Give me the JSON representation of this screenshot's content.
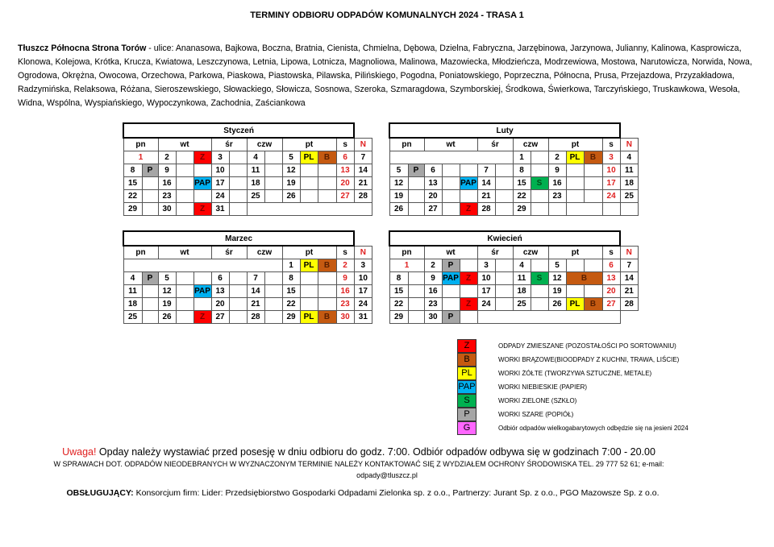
{
  "title": "TERMINY ODBIORU ODPADÓW KOMUNALNYCH 2024 - TRASA 1",
  "area": {
    "name": "Tłuszcz Północna Strona Torów",
    "streets": " - ulice: Ananasowa, Bajkowa, Boczna, Bratnia, Cienista, Chmielna, Dębowa, Dzielna, Fabryczna, Jarzębinowa, Jarzynowa, Julianny, Kalinowa, Kasprowicza, Klonowa, Kolejowa, Krótka, Krucza, Kwiatowa, Leszczynowa, Letnia, Lipowa, Lotnicza, Magnoliowa, Malinowa, Mazowiecka, Młodzieńcza, Modrzewiowa, Mostowa, Narutowicza, Norwida, Nowa, Ogrodowa, Okrężna, Owocowa, Orzechowa, Parkowa, Piaskowa, Piastowska, Pilawska, Pilińskiego, Pogodna, Poniatowskiego, Poprzeczna, Północna, Prusa, Przejazdowa, Przyzakładowa, Radzymińska, Relaksowa, Różana, Sieroszewskiego, Słowackiego, Słowicza, Sosnowa, Szeroka, Szmaragdowa, Szymborskiej, Środkowa, Świerkowa, Tarczyńskiego, Truskawkowa, Wesoła, Widna, Wspólna, Wyspiańskiego, Wypoczynkowa, Zachodnia, Zaściankowa"
  },
  "weekdays": [
    {
      "v": "pn",
      "span": 2
    },
    {
      "v": "wt",
      "span": 3
    },
    {
      "v": "śr",
      "span": 2
    },
    {
      "v": "czw",
      "span": 2
    },
    {
      "v": "pt",
      "span": 3
    },
    {
      "v": "s"
    },
    {
      "v": "N",
      "red": true
    }
  ],
  "months": [
    {
      "name": "Styczeń",
      "rows": [
        [
          {
            "v": "1",
            "red": true,
            "span": 2
          },
          "2",
          "",
          "Z",
          "3",
          "",
          "4",
          "",
          "5",
          "PL",
          "B",
          {
            "v": "6",
            "red": true
          },
          "7"
        ],
        [
          "8",
          "P",
          "9",
          "",
          "",
          "10",
          "",
          "11",
          "",
          "12",
          "",
          "",
          "13",
          "14"
        ],
        [
          "15",
          "",
          "16",
          "",
          "PAP",
          "17",
          "",
          "18",
          "",
          "19",
          "",
          "",
          "20",
          "21"
        ],
        [
          "22",
          "",
          "23",
          "",
          "",
          "24",
          "",
          "25",
          "",
          "26",
          "",
          "",
          "27",
          "28"
        ],
        [
          "29",
          "",
          "30",
          "",
          "Z",
          "31",
          "",
          {
            "v": "",
            "span": 7
          }
        ]
      ]
    },
    {
      "name": "Luty",
      "rows": [
        [
          {
            "v": "",
            "span": 7
          },
          "1",
          "",
          "2",
          "PL",
          "B",
          "3",
          "4"
        ],
        [
          "5",
          "P",
          "6",
          "",
          "",
          "7",
          "",
          "8",
          "",
          "9",
          "",
          "",
          "10",
          "11"
        ],
        [
          "12",
          "",
          "13",
          "",
          "PAP",
          "14",
          "",
          "15",
          "S",
          "16",
          "",
          "",
          "17",
          "18"
        ],
        [
          "19",
          "",
          "20",
          "",
          "",
          "21",
          "",
          "22",
          "",
          "23",
          "",
          "",
          "24",
          "25"
        ],
        [
          "26",
          "",
          "27",
          "",
          "Z",
          "28",
          "",
          "29",
          "",
          "",
          {
            "v": "",
            "span": 2
          },
          "",
          ""
        ]
      ]
    },
    {
      "name": "Marzec",
      "rows": [
        [
          {
            "v": "",
            "span": 9
          },
          "1",
          "PL",
          "B",
          "2",
          "3"
        ],
        [
          "4",
          "P",
          "5",
          "",
          "",
          "6",
          "",
          "7",
          "",
          "8",
          "",
          "",
          "9",
          "10"
        ],
        [
          "11",
          "",
          "12",
          "",
          "PAP",
          "13",
          "",
          "14",
          "",
          "15",
          "",
          "",
          "16",
          "17"
        ],
        [
          "18",
          "",
          "19",
          "",
          "",
          "20",
          "",
          "21",
          "",
          "22",
          "",
          "",
          "23",
          "24"
        ],
        [
          "25",
          "",
          "26",
          "",
          "Z",
          "27",
          "",
          "28",
          "",
          "29",
          "PL",
          "B",
          "30",
          "31"
        ]
      ]
    },
    {
      "name": "Kwiecień",
      "rows": [
        [
          {
            "v": "1",
            "red": true,
            "span": 2
          },
          "2",
          "P",
          "",
          "3",
          "",
          "4",
          "",
          "5",
          "",
          "",
          "6",
          "7"
        ],
        [
          "8",
          "",
          "9",
          "PAP",
          "Z",
          "10",
          "",
          "11",
          "S",
          "12",
          {
            "v": "B",
            "span": 2
          },
          "13",
          "14"
        ],
        [
          "15",
          "",
          "16",
          "",
          "",
          "17",
          "",
          "18",
          "",
          "19",
          "",
          "",
          "20",
          "21"
        ],
        [
          "22",
          "",
          "23",
          "",
          "Z",
          "24",
          "",
          "25",
          "",
          "26",
          "PL",
          "B",
          "27",
          "28"
        ],
        [
          "29",
          "",
          "30",
          "P",
          "",
          {
            "v": "",
            "span": 8
          }
        ]
      ]
    }
  ],
  "legend": [
    {
      "code": "Z",
      "color": "#ff0000",
      "text": "ODPADY ZMIESZANE (POZOSTAŁOŚCI PO SORTOWANIU)"
    },
    {
      "code": "B",
      "color": "#c55a11",
      "text": "WORKI BRĄZOWE(BIOODPADY Z KUCHNI, TRAWA, LIŚCIE)"
    },
    {
      "code": "PL",
      "color": "#ffff00",
      "text": "WORKI ŻÓŁTE (TWORZYWA SZTUCZNE, METALE)"
    },
    {
      "code": "PAP",
      "color": "#00b0f0",
      "text": "WORKI NIEBIESKIE (PAPIER)"
    },
    {
      "code": "S",
      "color": "#00b050",
      "text": "WORKI ZIELONE (SZKŁO)"
    },
    {
      "code": "P",
      "color": "#a6a6a6",
      "text": "WORKI SZARE (POPIÓŁ)"
    },
    {
      "code": "G",
      "color": "#ff66ff",
      "text": "Odbiór odpadów wielkogabarytowych odbędzie się na jesieni 2024"
    }
  ],
  "notice": {
    "label": "Uwaga!",
    "text": " Opday należy wystawiać przed posesję w dniu odbioru do godz. 7:00. Odbiór odpadów odbywa się w godzinach 7:00 - 20.00"
  },
  "contact": {
    "line1": "W SPRAWACH DOT. ODPADÓW NIEODEBRANYCH W WYZNACZONYM TERMINIE NALEŻY KONTAKTOWAĆ SIĘ Z WYDZIAŁEM OCHRONY ŚRODOWISKA TEL. 29 777 52 61; e-mail:",
    "email": "odpady@tluszcz.pl"
  },
  "operator": {
    "label": "OBSŁUGUJĄCY:",
    "text": " Konsorcjum firm: Lider: Przedsiębiorstwo Gospodarki Odpadami Zielonka sp. z o.o., Partnerzy: Jurant Sp. z o.o., PGO Mazowsze Sp. z o.o."
  }
}
